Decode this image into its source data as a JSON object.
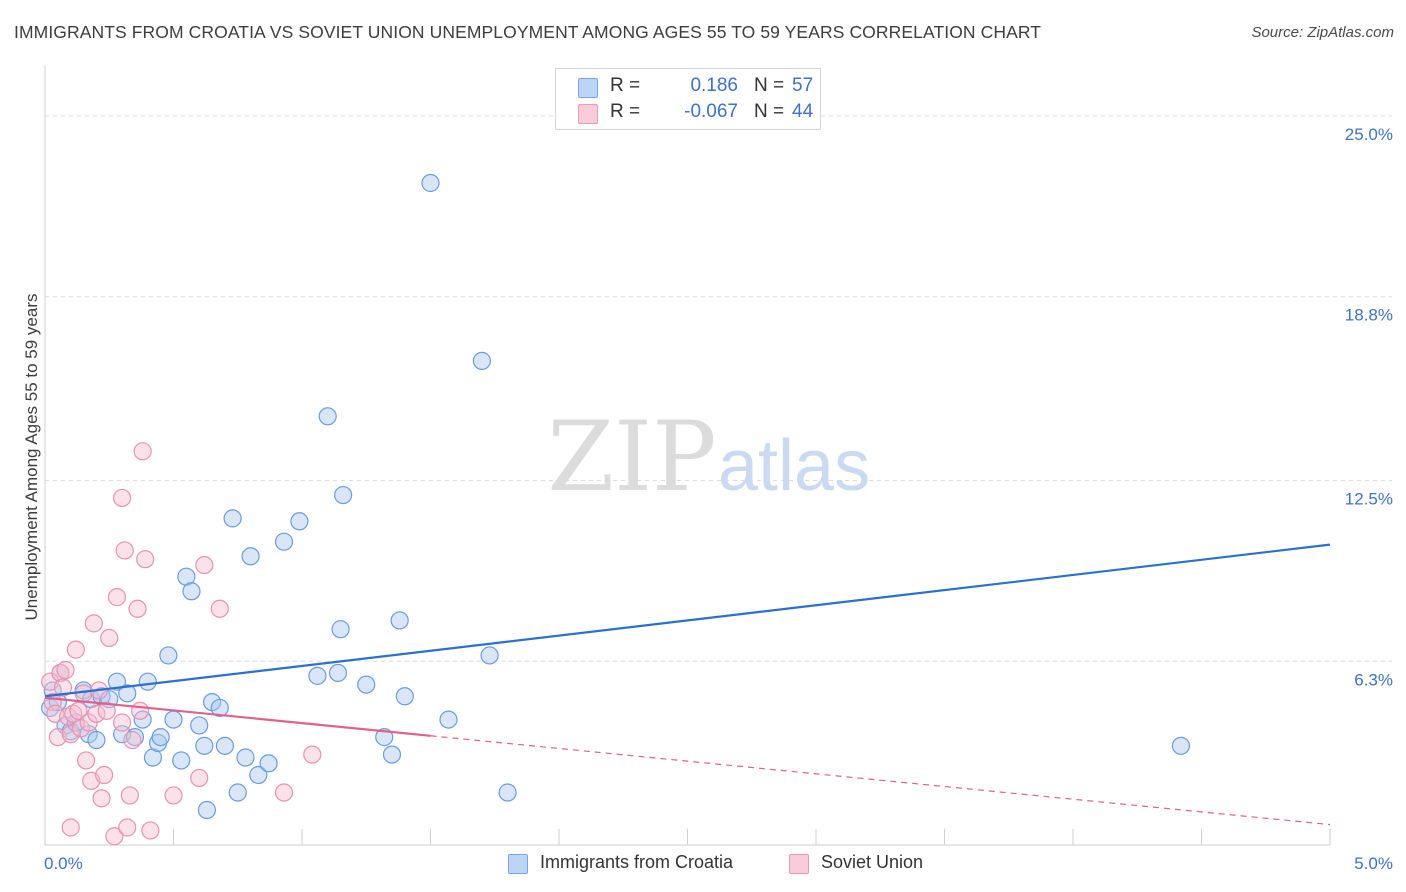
{
  "header": {
    "title": "IMMIGRANTS FROM CROATIA VS SOVIET UNION UNEMPLOYMENT AMONG AGES 55 TO 59 YEARS CORRELATION CHART",
    "source": "Source: ZipAtlas.com"
  },
  "watermark": {
    "zip": "ZIP",
    "atlas": "atlas"
  },
  "legend": {
    "series": [
      {
        "r_label": "R =",
        "r_value": "0.186",
        "n_label": "N =",
        "n_value": "57"
      },
      {
        "r_label": "R =",
        "r_value": "-0.067",
        "n_label": "N =",
        "n_value": "44"
      }
    ]
  },
  "colors": {
    "series1_fill": "#a9c8f0",
    "series1_stroke": "#6a9ddd",
    "series1_line": "#2a70cf",
    "series2_fill": "#f6bfd0",
    "series2_stroke": "#e792b0",
    "series2_line": "#e0608e",
    "axis_label": "#3d72c4",
    "grid": "#dcdcdc"
  },
  "chart_data": {
    "type": "scatter",
    "title": "IMMIGRANTS FROM CROATIA VS SOVIET UNION UNEMPLOYMENT AMONG AGES 55 TO 59 YEARS CORRELATION CHART",
    "xlabel": "",
    "ylabel": "Unemployment Among Ages 55 to 59 years",
    "xlim": [
      0,
      5
    ],
    "ylim": [
      0,
      26.3
    ],
    "x_tick_labels": [
      "0.0%",
      "5.0%"
    ],
    "y_ticks": [
      {
        "value": 6.3,
        "label": "6.3%"
      },
      {
        "value": 12.5,
        "label": "12.5%"
      },
      {
        "value": 18.8,
        "label": "18.8%"
      },
      {
        "value": 25.0,
        "label": "25.0%"
      }
    ],
    "series": [
      {
        "name": "Immigrants from Croatia",
        "r": 0.186,
        "n": 57,
        "trend": {
          "x": [
            0.0,
            5.0
          ],
          "y": [
            5.1,
            10.3
          ],
          "solid_until": 5.0
        },
        "points": [
          [
            0.02,
            4.7
          ],
          [
            0.03,
            5.3
          ],
          [
            0.05,
            4.9
          ],
          [
            0.06,
            5.9
          ],
          [
            0.08,
            4.1
          ],
          [
            0.1,
            3.9
          ],
          [
            0.12,
            4.2
          ],
          [
            0.15,
            5.3
          ],
          [
            0.17,
            3.8
          ],
          [
            0.18,
            5.0
          ],
          [
            0.2,
            3.6
          ],
          [
            0.22,
            5.1
          ],
          [
            0.25,
            5.0
          ],
          [
            0.28,
            5.6
          ],
          [
            0.3,
            3.8
          ],
          [
            0.32,
            5.2
          ],
          [
            0.35,
            3.7
          ],
          [
            0.38,
            4.3
          ],
          [
            0.4,
            5.6
          ],
          [
            0.42,
            3.0
          ],
          [
            0.44,
            3.5
          ],
          [
            0.45,
            3.7
          ],
          [
            0.48,
            6.5
          ],
          [
            0.5,
            4.3
          ],
          [
            0.53,
            2.9
          ],
          [
            0.55,
            9.2
          ],
          [
            0.57,
            8.7
          ],
          [
            0.6,
            4.1
          ],
          [
            0.62,
            3.4
          ],
          [
            0.63,
            1.2
          ],
          [
            0.65,
            4.9
          ],
          [
            0.68,
            4.7
          ],
          [
            0.7,
            3.4
          ],
          [
            0.73,
            11.2
          ],
          [
            0.75,
            1.8
          ],
          [
            0.78,
            3.0
          ],
          [
            0.8,
            9.9
          ],
          [
            0.83,
            2.4
          ],
          [
            0.87,
            2.8
          ],
          [
            0.93,
            10.4
          ],
          [
            0.99,
            11.1
          ],
          [
            1.06,
            5.8
          ],
          [
            1.1,
            14.7
          ],
          [
            1.14,
            5.9
          ],
          [
            1.15,
            7.4
          ],
          [
            1.16,
            12.0
          ],
          [
            1.25,
            5.5
          ],
          [
            1.32,
            3.7
          ],
          [
            1.35,
            3.1
          ],
          [
            1.38,
            7.7
          ],
          [
            1.4,
            5.1
          ],
          [
            1.5,
            22.7
          ],
          [
            1.57,
            4.3
          ],
          [
            1.7,
            16.6
          ],
          [
            1.73,
            6.5
          ],
          [
            1.8,
            1.8
          ],
          [
            4.42,
            3.4
          ]
        ]
      },
      {
        "name": "Soviet Union",
        "r": -0.067,
        "n": 44,
        "trend": {
          "x": [
            0.0,
            5.0
          ],
          "y": [
            5.05,
            0.7
          ],
          "solid_until": 1.5
        },
        "points": [
          [
            0.02,
            5.6
          ],
          [
            0.03,
            4.9
          ],
          [
            0.04,
            4.5
          ],
          [
            0.05,
            3.7
          ],
          [
            0.06,
            5.9
          ],
          [
            0.07,
            5.4
          ],
          [
            0.08,
            6.0
          ],
          [
            0.09,
            4.4
          ],
          [
            0.1,
            3.8
          ],
          [
            0.1,
            0.6
          ],
          [
            0.11,
            4.5
          ],
          [
            0.12,
            6.7
          ],
          [
            0.13,
            4.6
          ],
          [
            0.14,
            4.0
          ],
          [
            0.15,
            5.2
          ],
          [
            0.16,
            2.9
          ],
          [
            0.17,
            4.2
          ],
          [
            0.18,
            2.2
          ],
          [
            0.19,
            7.6
          ],
          [
            0.2,
            4.5
          ],
          [
            0.21,
            5.3
          ],
          [
            0.22,
            1.6
          ],
          [
            0.23,
            2.4
          ],
          [
            0.24,
            4.6
          ],
          [
            0.25,
            7.1
          ],
          [
            0.27,
            0.3
          ],
          [
            0.28,
            8.5
          ],
          [
            0.3,
            4.2
          ],
          [
            0.3,
            11.9
          ],
          [
            0.31,
            10.1
          ],
          [
            0.32,
            0.6
          ],
          [
            0.33,
            1.7
          ],
          [
            0.34,
            3.6
          ],
          [
            0.36,
            8.1
          ],
          [
            0.37,
            4.6
          ],
          [
            0.38,
            13.5
          ],
          [
            0.39,
            9.8
          ],
          [
            0.41,
            0.5
          ],
          [
            0.5,
            1.7
          ],
          [
            0.6,
            2.3
          ],
          [
            0.62,
            9.6
          ],
          [
            0.68,
            8.1
          ],
          [
            0.93,
            1.8
          ],
          [
            1.04,
            3.1
          ]
        ]
      }
    ]
  },
  "bottom_legend": {
    "items": [
      {
        "label": "Immigrants from Croatia"
      },
      {
        "label": "Soviet Union"
      }
    ]
  }
}
